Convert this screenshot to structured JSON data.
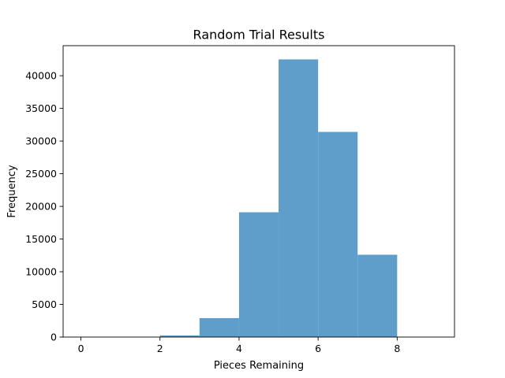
{
  "chart_data": {
    "type": "bar",
    "title": "Random Trial Results",
    "xlabel": "Pieces Remaining",
    "ylabel": "Frequency",
    "xlim": [
      -0.45,
      9.45
    ],
    "ylim": [
      0,
      44600
    ],
    "bar_color": "#5f9ecb",
    "bins": [
      {
        "x0": 0,
        "x1": 1,
        "value": 0
      },
      {
        "x0": 1,
        "x1": 2,
        "value": 0
      },
      {
        "x0": 2,
        "x1": 3,
        "value": 250
      },
      {
        "x0": 3,
        "x1": 4,
        "value": 2900
      },
      {
        "x0": 4,
        "x1": 5,
        "value": 19100
      },
      {
        "x0": 5,
        "x1": 6,
        "value": 42500
      },
      {
        "x0": 6,
        "x1": 7,
        "value": 31400
      },
      {
        "x0": 7,
        "x1": 8,
        "value": 12600
      },
      {
        "x0": 8,
        "x1": 9,
        "value": 0
      }
    ],
    "x_ticks": [
      {
        "value": 0,
        "label": "0"
      },
      {
        "value": 2,
        "label": "2"
      },
      {
        "value": 4,
        "label": "4"
      },
      {
        "value": 6,
        "label": "6"
      },
      {
        "value": 8,
        "label": "8"
      }
    ],
    "y_ticks": [
      {
        "value": 0,
        "label": "0"
      },
      {
        "value": 5000,
        "label": "5000"
      },
      {
        "value": 10000,
        "label": "10000"
      },
      {
        "value": 15000,
        "label": "15000"
      },
      {
        "value": 20000,
        "label": "20000"
      },
      {
        "value": 25000,
        "label": "25000"
      },
      {
        "value": 30000,
        "label": "30000"
      },
      {
        "value": 35000,
        "label": "35000"
      },
      {
        "value": 40000,
        "label": "40000"
      }
    ],
    "grid": false,
    "legend": "none"
  }
}
